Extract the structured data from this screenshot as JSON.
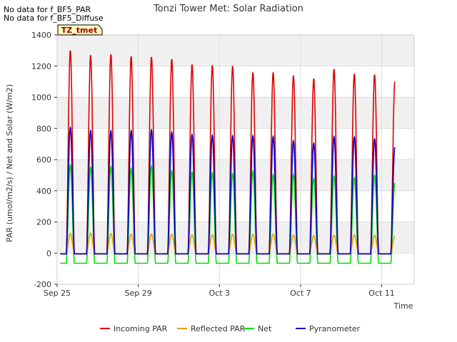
{
  "notes": [
    "No data for f_BF5_PAR",
    "No data for f_BF5_Diffuse"
  ],
  "tag_label": "TZ_tmet",
  "chart_data": {
    "type": "line",
    "title": "Tonzi Tower Met: Solar Radiation",
    "xlabel": "Time",
    "ylabel": "PAR (umol/m2/s) / Net and Solar (W/m2)",
    "ylim": [
      -200,
      1400
    ],
    "xlim": [
      0,
      17.6
    ],
    "yticks": [
      -200,
      0,
      200,
      400,
      600,
      800,
      1000,
      1200,
      1400
    ],
    "xticks": [
      {
        "day": 0,
        "label": "Sep 25"
      },
      {
        "day": 4,
        "label": "Sep 29"
      },
      {
        "day": 8,
        "label": "Oct 3"
      },
      {
        "day": 12,
        "label": "Oct 7"
      },
      {
        "day": 16,
        "label": "Oct 11"
      }
    ],
    "grid": true,
    "legend_position": "bottom",
    "series": [
      {
        "name": "Incoming PAR",
        "color": "#dd0000",
        "night": -5,
        "daily_peak": [
          1300,
          1270,
          1275,
          1262,
          1258,
          1245,
          1210,
          1205,
          1200,
          1160,
          1160,
          1140,
          1120,
          1180,
          1150,
          1145,
          1100
        ]
      },
      {
        "name": "Reflected PAR",
        "color": "#e8a000",
        "night": -5,
        "daily_peak": [
          125,
          128,
          125,
          122,
          122,
          120,
          118,
          118,
          120,
          120,
          122,
          115,
          112,
          115,
          118,
          115,
          110
        ]
      },
      {
        "name": "Net",
        "color": "#00dd00",
        "night": -65,
        "daily_peak": [
          565,
          550,
          555,
          545,
          558,
          530,
          520,
          515,
          510,
          525,
          505,
          505,
          480,
          495,
          485,
          500,
          450
        ]
      },
      {
        "name": "Pyranometer",
        "color": "#0000cc",
        "night": -5,
        "daily_peak": [
          805,
          785,
          785,
          785,
          790,
          775,
          760,
          755,
          752,
          752,
          748,
          720,
          705,
          748,
          745,
          732,
          680
        ]
      }
    ]
  }
}
